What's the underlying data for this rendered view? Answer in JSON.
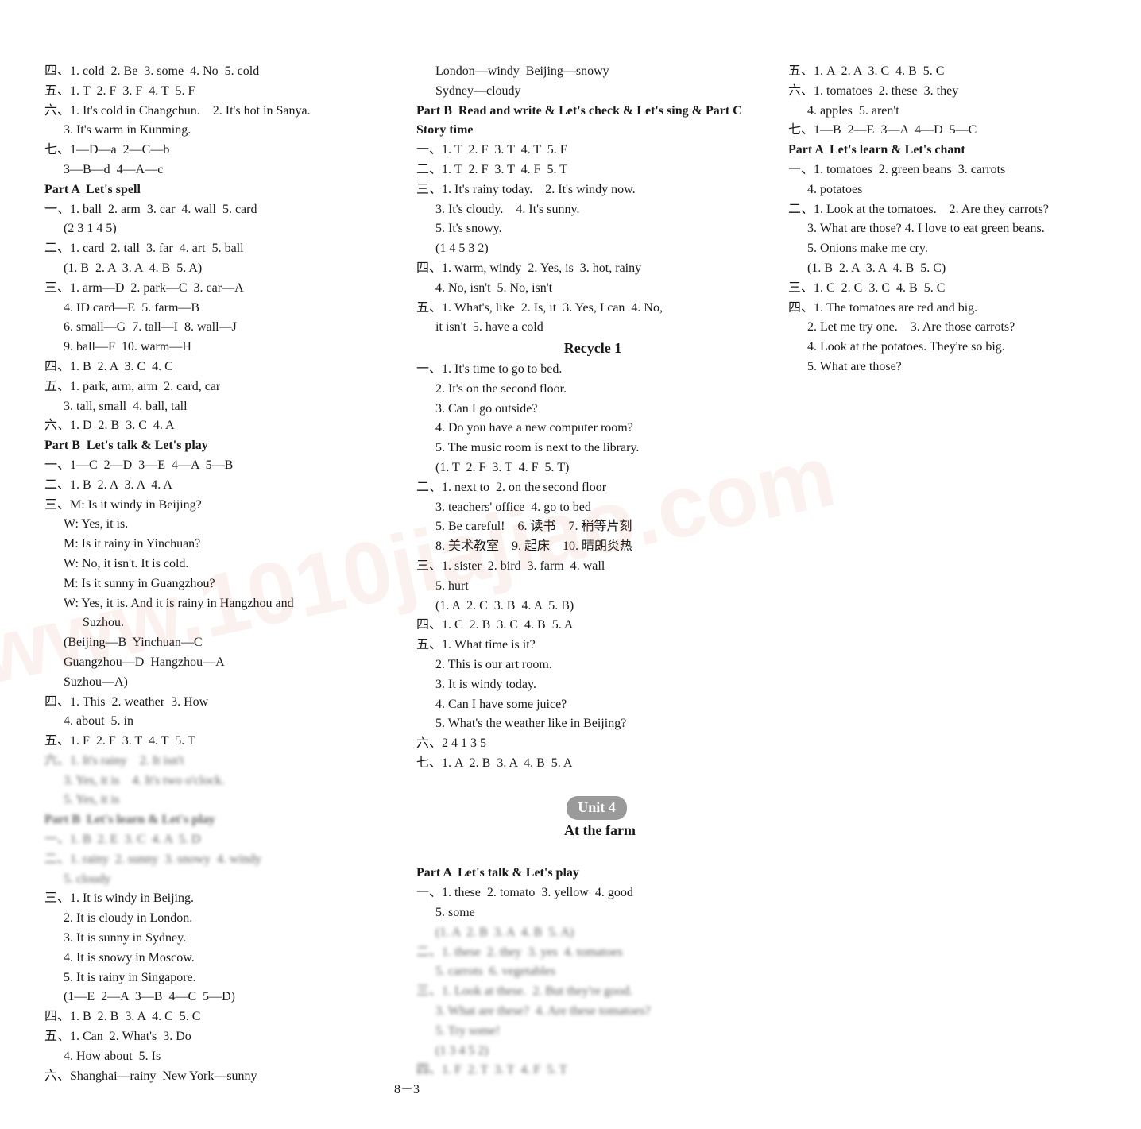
{
  "page_number": "8－3",
  "watermark": "www.1010jiajiao.com",
  "colors": {
    "text": "#1a1a1a",
    "background": "#ffffff",
    "badge_bg": "#9a9a9a",
    "badge_fg": "#ffffff",
    "watermark": "rgba(200,80,50,0.08)"
  },
  "left": {
    "l01": "四、1. cold  2. Be  3. some  4. No  5. cold",
    "l02": "五、1. T  2. F  3. F  4. T  5. F",
    "l03": "六、1. It's cold in Changchun.    2. It's hot in Sanya.",
    "l04": "3. It's warm in Kunming.",
    "l05": "七、1—D—a  2—C—b",
    "l06": "3—B—d  4—A—c",
    "h01": "Part A  Let's spell",
    "l07": "一、1. ball  2. arm  3. car  4. wall  5. card",
    "l08": "(2 3 1 4 5)",
    "l09": "二、1. card  2. tall  3. far  4. art  5. ball",
    "l10": "(1. B  2. A  3. A  4. B  5. A)",
    "l11": "三、1. arm—D  2. park—C  3. car—A",
    "l12": "4. ID card—E  5. farm—B",
    "l13": "6. small—G  7. tall—I  8. wall—J",
    "l14": "9. ball—F  10. warm—H",
    "l15": "四、1. B  2. A  3. C  4. C",
    "l16": "五、1. park, arm, arm  2. card, car",
    "l17": "3. tall, small  4. ball, tall",
    "l18": "六、1. D  2. B  3. C  4. A",
    "h02": "Part B  Let's talk & Let's play",
    "l19": "一、1—C  2—D  3—E  4—A  5—B",
    "l20": "二、1. B  2. A  3. A  4. A",
    "l21": "三、M: Is it windy in Beijing?",
    "l22": "W: Yes, it is.",
    "l23": "M: Is it rainy in Yinchuan?",
    "l24": "W: No, it isn't. It is cold.",
    "l25": "M: Is it sunny in Guangzhou?",
    "l26": "W: Yes, it is. And it is rainy in Hangzhou and",
    "l27": "Suzhou.",
    "l28": "(Beijing—B  Yinchuan—C",
    "l29": "Guangzhou—D  Hangzhou—A",
    "l30": "Suzhou—A)",
    "l31": "四、1. This  2. weather  3. How",
    "l32": "4. about  5. in",
    "l33": "五、1. F  2. F  3. T  4. T  5. T",
    "l34": "六、1. It's rainy    2. It isn't",
    "l35": "3. Yes, it is    4. It's two o'clock.",
    "l36": "5. Yes, it is",
    "h03": "Part B  Let's learn & Let's play",
    "l37": "一、1. B  2. E  3. C  4. A  5. D",
    "l38": "二、1. rainy  2. sunny  3. snowy  4. windy",
    "l39": "5. cloudy",
    "l40": "三、1. It is windy in Beijing.",
    "l41": "2. It is cloudy in London.",
    "l42": "3. It is sunny in Sydney.",
    "l43": "4. It is snowy in Moscow.",
    "l44": "5. It is rainy in Singapore.",
    "l45": "(1—E  2—A  3—B  4—C  5—D)",
    "l46": "四、1. B  2. B  3. A  4. C  5. C",
    "l47": "五、1. Can  2. What's  3. Do",
    "l48": "4. How about  5. Is",
    "l49": "六、Shanghai—rainy  New York—sunny",
    "l50": "London—windy  Beijing—snowy",
    "l51": "Sydney—cloudy",
    "h04": "Part B  Read and write & Let's check & Let's sing & Part C  Story time",
    "l52": "一、1. T  2. F  3. T  4. T  5. F",
    "l53": "二、1. T  2. F  3. T  4. F  5. T"
  },
  "right": {
    "r01": "三、1. It's rainy today.    2. It's windy now.",
    "r02": "3. It's cloudy.    4. It's sunny.",
    "r03": "5. It's snowy.",
    "r04": "(1 4 5 3 2)",
    "r05": "四、1. warm, windy  2. Yes, is  3. hot, rainy",
    "r06": "4. No, isn't  5. No, isn't",
    "r07": "五、1. What's, like  2. Is, it  3. Yes, I can  4. No,",
    "r08": "it isn't  5. have a cold",
    "h05": "Recycle 1",
    "r09": "一、1. It's time to go to bed.",
    "r10": "2. It's on the second floor.",
    "r11": "3. Can I go outside?",
    "r12": "4. Do you have a new computer room?",
    "r13": "5. The music room is next to the library.",
    "r14": "(1. T  2. F  3. T  4. F  5. T)",
    "r15": "二、1. next to  2. on the second floor",
    "r16": "3. teachers' office  4. go to bed",
    "r17": "5. Be careful!    6. 读书    7. 稍等片刻",
    "r18": "8. 美术教室    9. 起床    10. 晴朗炎热",
    "r19": "三、1. sister  2. bird  3. farm  4. wall",
    "r20": "5. hurt",
    "r21": "(1. A  2. C  3. B  4. A  5. B)",
    "r22": "四、1. C  2. B  3. C  4. B  5. A",
    "r23": "五、1. What time is it?",
    "r24": "2. This is our art room.",
    "r25": "3. It is windy today.",
    "r26": "4. Can I have some juice?",
    "r27": "5. What's the weather like in Beijing?",
    "r28": "六、2 4 1 3 5",
    "r29": "七、1. A  2. B  3. A  4. B  5. A",
    "unit_badge": "Unit 4",
    "unit_title": "At the farm",
    "h06": "Part A  Let's talk & Let's play",
    "r30": "一、1. these  2. tomato  3. yellow  4. good",
    "r31": "5. some",
    "r32": "(1. A  2. B  3. A  4. B  5. A)",
    "r33": "二、1. these  2. they  3. yes  4. tomatoes",
    "r34": "5. carrots  6. vegetables",
    "r35": "三、1. Look at these.  2. But they're good.",
    "r36": "3. What are these?  4. Are these tomatoes?",
    "r37": "5. Try some!",
    "r38": "(1 3 4 5 2)",
    "r39": "四、1. F  2. T  3. T  4. F  5. T",
    "r40": "五、1. A  2. A  3. C  4. B  5. C",
    "r41": "六、1. tomatoes  2. these  3. they",
    "r42": "4. apples  5. aren't",
    "r43": "七、1—B  2—E  3—A  4—D  5—C",
    "h07": "Part A  Let's learn & Let's chant",
    "r44": "一、1. tomatoes  2. green beans  3. carrots",
    "r45": "4. potatoes",
    "r46": "二、1. Look at the tomatoes.    2. Are they carrots?",
    "r47": "3. What are those? 4. I love to eat green beans.",
    "r48": "5. Onions make me cry.",
    "r49": "(1. B  2. A  3. A  4. B  5. C)",
    "r50": "三、1. C  2. C  3. C  4. B  5. C",
    "r51": "四、1. The tomatoes are red and big.",
    "r52": "2. Let me try one.    3. Are those carrots?",
    "r53": "4. Look at the potatoes. They're so big.",
    "r54": "5. What are those?"
  }
}
